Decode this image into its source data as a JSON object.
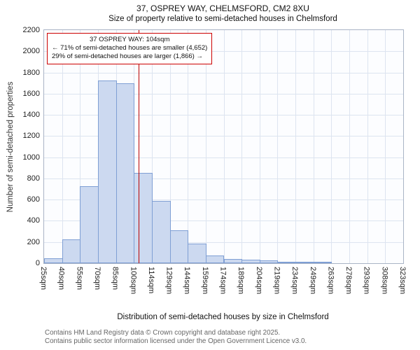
{
  "header": {
    "title": "37, OSPREY WAY, CHELMSFORD, CM2 8XU",
    "subtitle": "Size of property relative to semi-detached houses in Chelmsford"
  },
  "annotation": {
    "line1": "37 OSPREY WAY: 104sqm",
    "line2": "← 71% of semi-detached houses are smaller (4,652)",
    "line3": "29% of semi-detached houses are larger (1,866) →"
  },
  "chart_data": {
    "type": "bar",
    "title": "37, OSPREY WAY, CHELMSFORD, CM2 8XU",
    "subtitle": "Size of property relative to semi-detached houses in Chelmsford",
    "xlabel": "Distribution of semi-detached houses by size in Chelmsford",
    "ylabel": "Number of semi-detached properties",
    "bin_edges": [
      25,
      40,
      55,
      70,
      85,
      100,
      114,
      129,
      144,
      159,
      174,
      189,
      204,
      219,
      234,
      249,
      263,
      278,
      293,
      308,
      323
    ],
    "tick_labels": [
      "25sqm",
      "40sqm",
      "55sqm",
      "70sqm",
      "85sqm",
      "100sqm",
      "114sqm",
      "129sqm",
      "144sqm",
      "159sqm",
      "174sqm",
      "189sqm",
      "204sqm",
      "219sqm",
      "234sqm",
      "249sqm",
      "263sqm",
      "278sqm",
      "293sqm",
      "308sqm",
      "323sqm"
    ],
    "values": [
      45,
      225,
      730,
      1725,
      1700,
      855,
      590,
      310,
      185,
      75,
      40,
      30,
      25,
      10,
      8,
      5,
      0,
      0,
      0,
      0
    ],
    "ylim": [
      0,
      2200
    ],
    "yticks": [
      0,
      200,
      400,
      600,
      800,
      1000,
      1200,
      1400,
      1600,
      1800,
      2000,
      2200
    ],
    "marker_value": 104,
    "legend": null,
    "grid": true,
    "colors": {
      "bar_fill": "#ccd9f0",
      "bar_border": "#7f9fd4",
      "marker": "#bb0000",
      "grid": "#dde4f0",
      "annotation_border": "#cc0000"
    }
  },
  "footer": {
    "line1": "Contains HM Land Registry data © Crown copyright and database right 2025.",
    "line2": "Contains public sector information licensed under the Open Government Licence v3.0."
  }
}
